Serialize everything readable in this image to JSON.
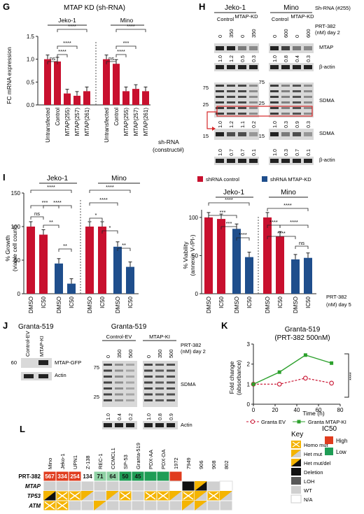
{
  "colors": {
    "red": "#c8102e",
    "blue": "#1f4e8c",
    "green": "#2ca02c",
    "orange": "#f4b400",
    "high": "#e03c1e",
    "low": "#1f9d55",
    "black": "#111111",
    "dkgray": "#595959",
    "ltgray": "#d0d0d0"
  },
  "panelG": {
    "letter": "G",
    "title": "MTAP KD (sh-RNA)",
    "groups": [
      "Jeko-1",
      "Mino"
    ],
    "ylabel": "FC mRNA expression",
    "yticks": [
      "0.0",
      "0.5",
      "1.0",
      "1.5"
    ],
    "categories": [
      "Untransfected",
      "Control",
      "MTAP(255)",
      "MTAP(257)",
      "MTAP(261)",
      "Untransfected",
      "Control",
      "MTAP(255)",
      "MTAP(257)",
      "MTAP(261)"
    ],
    "side_label_1": "sh-RNA",
    "side_label_2": "(construct#)",
    "sig": [
      "ns",
      "****",
      "****",
      "****",
      "ns",
      "****",
      "***",
      "****"
    ]
  },
  "panelH": {
    "letter": "H",
    "groups": [
      "Jeko-1",
      "Mino"
    ],
    "cond_jeko": [
      "Control",
      "MTAP-KD"
    ],
    "cond_mino": [
      "Control",
      "MTAP-KD"
    ],
    "doses_jeko": [
      "0",
      "350",
      "0",
      "350"
    ],
    "doses_mino": [
      "0",
      "600",
      "0",
      "600"
    ],
    "right": [
      "Sh-RNA (#255)",
      "PRT-382",
      "(nM) day 2",
      "MTAP",
      "β-actin",
      "SDMA",
      "SDMA",
      "β-actin"
    ],
    "mw": [
      "75",
      "25",
      "15",
      "75",
      "25",
      "15"
    ],
    "q1_j": [
      "1.0",
      "1.2",
      "0.5",
      "0.3"
    ],
    "q1_m": [
      "1.0",
      "0.8",
      "0.4",
      "0.3"
    ],
    "q2_j": [
      "1.0",
      "1.2",
      "1.1",
      "0.2"
    ],
    "q2_m": [
      "1.0",
      "0.3",
      "0.9",
      "0.3"
    ],
    "q3_j": [
      "1.0",
      "0.7",
      "0.7",
      "0.1"
    ],
    "q3_m": [
      "1.0",
      "0.3",
      "0.7",
      "0.1"
    ]
  },
  "panelI": {
    "letter": "I",
    "groups": [
      "Jeko-1",
      "Mino"
    ],
    "ylabel_left_1": "% Growth",
    "ylabel_left_2": "(viable cell count)",
    "ylabel_right_1": "% Viability",
    "ylabel_right_2": "(annexin V-/PI-)",
    "yticks_left": [
      "0",
      "50",
      "100",
      "150"
    ],
    "yticks_right": [
      "0",
      "50",
      "100"
    ],
    "xcats": [
      "DMSO",
      "IC50",
      "DMSO",
      "IC50"
    ],
    "legend": [
      "shRNA control",
      "shRNA MTAP-KD"
    ],
    "side": [
      "PRT-382",
      "(nM) day 5"
    ],
    "sig_left_j": [
      "****",
      "***",
      "ns",
      "****",
      "**",
      "**"
    ],
    "sig_left_m": [
      "****",
      "****",
      "*",
      "*",
      "**"
    ],
    "sig_right_j": [
      "****",
      "***",
      "***",
      "****"
    ],
    "sig_right_m": [
      "****",
      "****",
      "****",
      "****",
      "ns"
    ]
  },
  "panelJ": {
    "letter": "J",
    "cell": "Granta-519",
    "lanes_small": [
      "Control-EV",
      "MTAP-KI"
    ],
    "mw_small": "60",
    "labels_small": [
      "MTAP-GFP",
      "Actin"
    ],
    "conds": [
      "Control-EV",
      "MTAP-KI"
    ],
    "doses": [
      "0",
      "350",
      "500",
      "0",
      "350",
      "500"
    ],
    "right": [
      "PRT-382",
      "(nM) day 2",
      "SDMA",
      "Actin"
    ],
    "mw": [
      "75",
      "25"
    ],
    "quant": [
      "1.0",
      "0.4",
      "0.2",
      "1.0",
      "0.8",
      "0.9"
    ]
  },
  "panelK": {
    "letter": "K",
    "title_1": "Granta-519",
    "title_2": "(PRT-382 500nM)",
    "ylabel_1": "Fold change",
    "ylabel_2": "(absorbance)",
    "xlabel": "Time (h)",
    "xticks": [
      "0",
      "20",
      "40",
      "60",
      "80"
    ],
    "yticks": [
      "0",
      "1",
      "2",
      "3"
    ],
    "sig": "****",
    "legend": [
      "Granta EV",
      "Granta MTAP-KI"
    ]
  },
  "panelL": {
    "letter": "L",
    "cell_lines": [
      "Mino",
      "Jeko-1",
      "UPN1",
      "Z-138",
      "REC-1",
      "CCMCL1",
      "SP-53",
      "Granta-519",
      "PDX-AA",
      "PDX-DA",
      "1972",
      "7949",
      "906",
      "908",
      "802"
    ],
    "rows": [
      "PRT-382",
      "MTAP",
      "TP53",
      "ATM"
    ],
    "ic50": [
      "567",
      "334",
      "254",
      "134",
      "71",
      "64",
      "50",
      "45",
      "",
      "",
      "",
      "",
      "",
      "",
      ""
    ],
    "key_title": "Key",
    "key": [
      "Homo mut",
      "Het mut",
      "Het mut/del",
      "Deletion",
      "LOH",
      "WT",
      "N/A"
    ],
    "ic50_title": "IC50",
    "ic50_key": [
      "High",
      "Low"
    ]
  },
  "chart_data": [
    {
      "type": "bar",
      "panel": "G",
      "title": "MTAP KD (sh-RNA)",
      "ylabel": "FC mRNA expression",
      "ylim": [
        0,
        1.5
      ],
      "categories": [
        "Untransfected",
        "Control",
        "MTAP(255)",
        "MTAP(257)",
        "MTAP(261)",
        "Untransfected",
        "Control",
        "MTAP(255)",
        "MTAP(257)",
        "MTAP(261)"
      ],
      "values": [
        1.0,
        0.95,
        0.25,
        0.2,
        0.3,
        1.0,
        0.9,
        0.3,
        0.35,
        0.3
      ]
    },
    {
      "type": "bar",
      "panel": "I-left",
      "ylabel": "% Growth (viable cell count)",
      "ylim": [
        0,
        150
      ],
      "categories": [
        "DMSO",
        "IC50",
        "DMSO",
        "IC50",
        "DMSO",
        "IC50",
        "DMSO",
        "IC50"
      ],
      "series": [
        {
          "name": "shRNA control",
          "values": [
            100,
            88,
            null,
            null,
            100,
            100,
            null,
            null
          ]
        },
        {
          "name": "shRNA MTAP-KD",
          "values": [
            null,
            null,
            45,
            15,
            null,
            null,
            70,
            40
          ]
        }
      ]
    },
    {
      "type": "bar",
      "panel": "I-right",
      "ylabel": "% Viability (annexin V-/PI-)",
      "ylim": [
        0,
        110
      ],
      "categories": [
        "DMSO",
        "IC50",
        "DMSO",
        "IC50",
        "DMSO",
        "IC50",
        "DMSO",
        "IC50"
      ],
      "series": [
        {
          "name": "shRNA control",
          "values": [
            100,
            98,
            null,
            null,
            100,
            75,
            null,
            null
          ]
        },
        {
          "name": "shRNA MTAP-KD",
          "values": [
            null,
            null,
            85,
            48,
            null,
            null,
            45,
            47
          ]
        }
      ]
    },
    {
      "type": "line",
      "panel": "K",
      "title": "Granta-519 (PRT-382 500nM)",
      "xlabel": "Time (h)",
      "ylabel": "Fold change (absorbance)",
      "xlim": [
        0,
        80
      ],
      "ylim": [
        0,
        3
      ],
      "series": [
        {
          "name": "Granta EV",
          "x": [
            0,
            24,
            48,
            72
          ],
          "y": [
            1.0,
            1.0,
            1.3,
            1.05
          ]
        },
        {
          "name": "Granta MTAP-KI",
          "x": [
            0,
            24,
            48,
            72
          ],
          "y": [
            1.0,
            1.6,
            2.45,
            2.05
          ]
        }
      ]
    }
  ]
}
